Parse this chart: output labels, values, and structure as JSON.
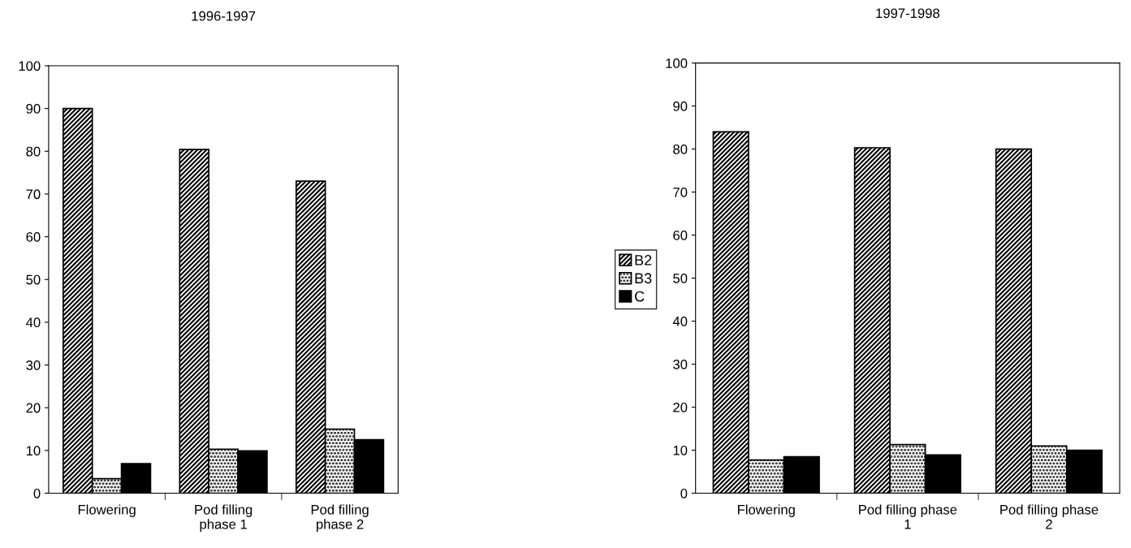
{
  "chart_data": [
    {
      "type": "bar",
      "title": "1996-1997",
      "categories": [
        "Flowering",
        "Pod filling\nphase 1",
        "Pod filling\nphase 2"
      ],
      "ylim": [
        0,
        100
      ],
      "yticks": [
        0,
        10,
        20,
        30,
        40,
        50,
        60,
        70,
        80,
        90,
        100
      ],
      "legend": "right",
      "series": [
        {
          "name": "B2",
          "color": "#000000",
          "values": [
            90,
            80.4,
            73
          ]
        },
        {
          "name": "B3",
          "color": "#000000",
          "values": [
            3.4,
            10.3,
            15
          ]
        },
        {
          "name": "C",
          "color": "#000000",
          "values": [
            6.9,
            9.9,
            12.5
          ]
        }
      ]
    },
    {
      "type": "bar",
      "title": "1997-1998",
      "categories": [
        "Flowering",
        "Pod filling phase\n1",
        "Pod filling phase\n2"
      ],
      "ylim": [
        0,
        100
      ],
      "yticks": [
        0,
        10,
        20,
        30,
        40,
        50,
        60,
        70,
        80,
        90,
        100
      ],
      "series": [
        {
          "name": "B2",
          "color": "#000000",
          "values": [
            84,
            80.3,
            80
          ]
        },
        {
          "name": "B3",
          "color": "#000000",
          "values": [
            7.7,
            11.3,
            11
          ]
        },
        {
          "name": "C",
          "color": "#000000",
          "values": [
            8.5,
            8.9,
            10
          ]
        }
      ]
    }
  ]
}
